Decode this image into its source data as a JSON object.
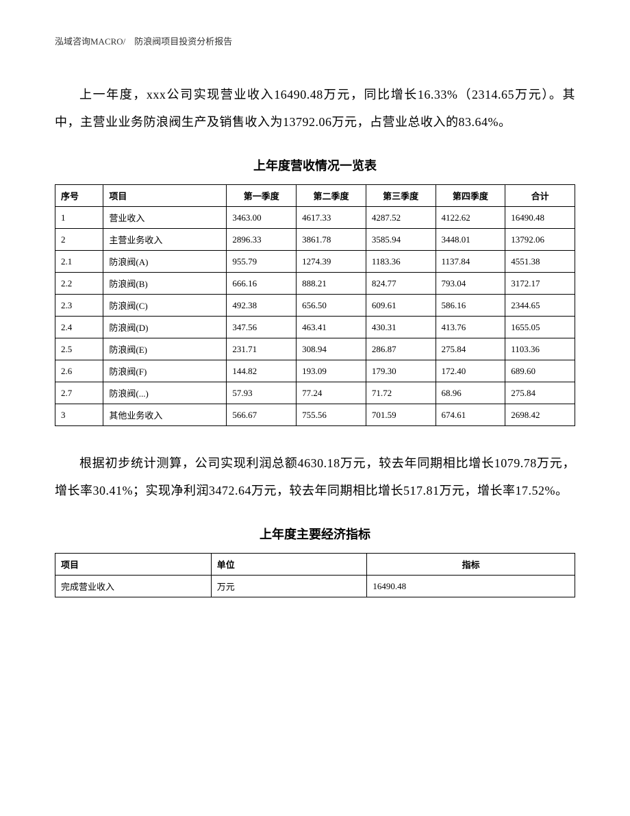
{
  "header": {
    "company": "泓域咨询MACRO/",
    "doc_title": "防浪阀项目投资分析报告"
  },
  "paragraph1": "上一年度，xxx公司实现营业收入16490.48万元，同比增长16.33%（2314.65万元）。其中，主营业业务防浪阀生产及销售收入为13792.06万元，占营业总收入的83.64%。",
  "table1": {
    "title": "上年度营收情况一览表",
    "columns": [
      "序号",
      "项目",
      "第一季度",
      "第二季度",
      "第三季度",
      "第四季度",
      "合计"
    ],
    "rows": [
      [
        "1",
        "营业收入",
        "3463.00",
        "4617.33",
        "4287.52",
        "4122.62",
        "16490.48"
      ],
      [
        "2",
        "主营业务收入",
        "2896.33",
        "3861.78",
        "3585.94",
        "3448.01",
        "13792.06"
      ],
      [
        "2.1",
        "防浪阀(A)",
        "955.79",
        "1274.39",
        "1183.36",
        "1137.84",
        "4551.38"
      ],
      [
        "2.2",
        "防浪阀(B)",
        "666.16",
        "888.21",
        "824.77",
        "793.04",
        "3172.17"
      ],
      [
        "2.3",
        "防浪阀(C)",
        "492.38",
        "656.50",
        "609.61",
        "586.16",
        "2344.65"
      ],
      [
        "2.4",
        "防浪阀(D)",
        "347.56",
        "463.41",
        "430.31",
        "413.76",
        "1655.05"
      ],
      [
        "2.5",
        "防浪阀(E)",
        "231.71",
        "308.94",
        "286.87",
        "275.84",
        "1103.36"
      ],
      [
        "2.6",
        "防浪阀(F)",
        "144.82",
        "193.09",
        "179.30",
        "172.40",
        "689.60"
      ],
      [
        "2.7",
        "防浪阀(...)",
        "57.93",
        "77.24",
        "71.72",
        "68.96",
        "275.84"
      ],
      [
        "3",
        "其他业务收入",
        "566.67",
        "755.56",
        "701.59",
        "674.61",
        "2698.42"
      ]
    ]
  },
  "paragraph2": "根据初步统计测算，公司实现利润总额4630.18万元，较去年同期相比增长1079.78万元，增长率30.41%；实现净利润3472.64万元，较去年同期相比增长517.81万元，增长率17.52%。",
  "table2": {
    "title": "上年度主要经济指标",
    "columns": [
      "项目",
      "单位",
      "指标"
    ],
    "rows": [
      [
        "完成营业收入",
        "万元",
        "16490.48"
      ]
    ]
  }
}
